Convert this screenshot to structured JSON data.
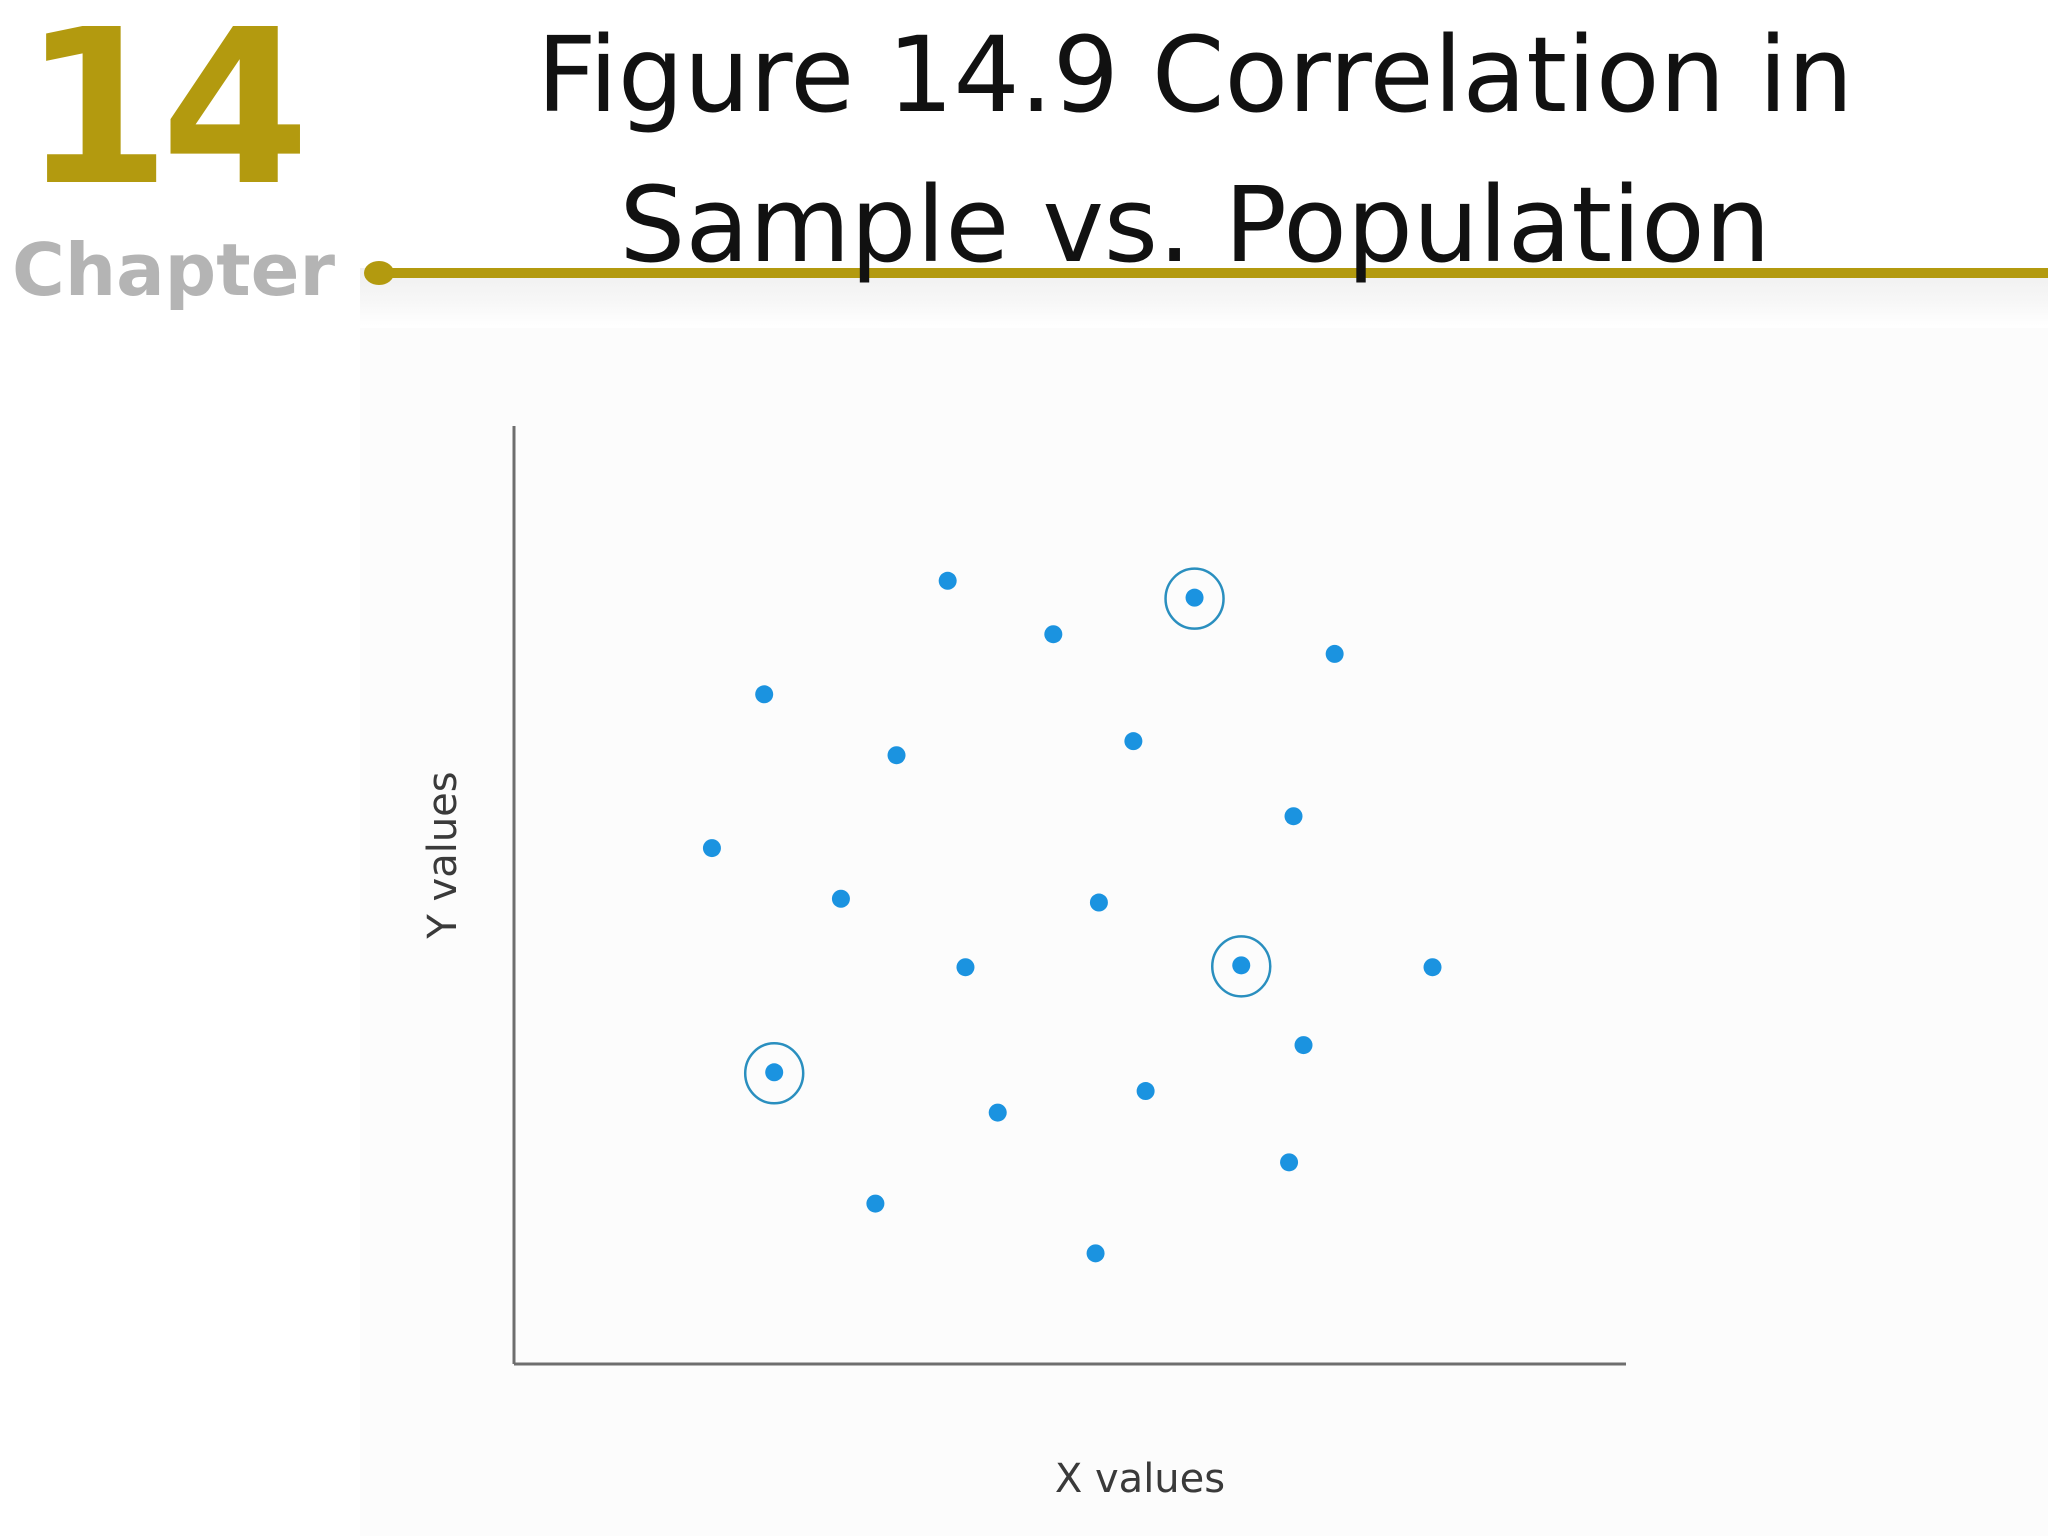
{
  "header": {
    "chapter_number": "14",
    "chapter_word": "Chapter",
    "title": "Figure 14.9    Correlation in\nSample vs. Population"
  },
  "colors": {
    "accent": "#b39a0f",
    "point": "#1b93e0",
    "sample_ring": "#2a8fbf"
  },
  "chart_data": {
    "type": "scatter",
    "title": "",
    "xlabel": "X values",
    "ylabel": "Y values",
    "xlim": [
      0,
      100
    ],
    "ylim": [
      0,
      100
    ],
    "grid": false,
    "ticks": false,
    "legend": "none",
    "points": [
      {
        "x": 39,
        "y": 83.5,
        "sample": false
      },
      {
        "x": 48.5,
        "y": 77.8,
        "sample": false
      },
      {
        "x": 61.2,
        "y": 81.7,
        "sample": true
      },
      {
        "x": 73.8,
        "y": 75.7,
        "sample": false
      },
      {
        "x": 22.5,
        "y": 71.4,
        "sample": false
      },
      {
        "x": 34.4,
        "y": 64.9,
        "sample": false
      },
      {
        "x": 55.7,
        "y": 66.4,
        "sample": false
      },
      {
        "x": 70.1,
        "y": 58.4,
        "sample": false
      },
      {
        "x": 17.8,
        "y": 55,
        "sample": false
      },
      {
        "x": 29.4,
        "y": 49.6,
        "sample": false
      },
      {
        "x": 52.6,
        "y": 49.2,
        "sample": false
      },
      {
        "x": 40.6,
        "y": 42.3,
        "sample": false
      },
      {
        "x": 65.4,
        "y": 42.5,
        "sample": true
      },
      {
        "x": 82.6,
        "y": 42.3,
        "sample": false
      },
      {
        "x": 71,
        "y": 34,
        "sample": false
      },
      {
        "x": 23.4,
        "y": 31.1,
        "sample": true
      },
      {
        "x": 56.8,
        "y": 29.1,
        "sample": false
      },
      {
        "x": 43.5,
        "y": 26.8,
        "sample": false
      },
      {
        "x": 69.7,
        "y": 21.5,
        "sample": false
      },
      {
        "x": 32.5,
        "y": 17.1,
        "sample": false
      },
      {
        "x": 52.3,
        "y": 11.8,
        "sample": false
      }
    ]
  }
}
